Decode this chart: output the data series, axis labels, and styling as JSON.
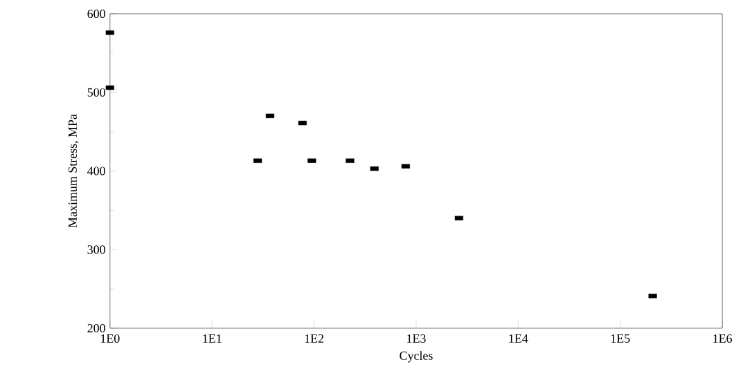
{
  "chart_data": {
    "type": "scatter",
    "xlabel": "Cycles",
    "ylabel": "Maximum Stress, MPa",
    "log": "x",
    "grid": false,
    "marker": "square",
    "x": [
      1,
      1,
      28,
      37,
      77,
      95,
      225,
      390,
      790,
      2630,
      208000
    ],
    "values": [
      576,
      506,
      413,
      470,
      461,
      413,
      413,
      403,
      406,
      340,
      241
    ],
    "color": "#000000",
    "xlim": [
      1,
      1000000
    ],
    "xticks": [
      {
        "value": 1,
        "label": "1E0"
      },
      {
        "value": 10,
        "label": "1E1"
      },
      {
        "value": 100,
        "label": "1E2"
      },
      {
        "value": 1000,
        "label": "1E3"
      },
      {
        "value": 10000,
        "label": "1E4"
      },
      {
        "value": 100000,
        "label": "1E5"
      },
      {
        "value": 1000000,
        "label": "1E6"
      }
    ],
    "ylim": [
      200,
      600
    ],
    "yticks": [
      200,
      300,
      400,
      500,
      600
    ]
  }
}
